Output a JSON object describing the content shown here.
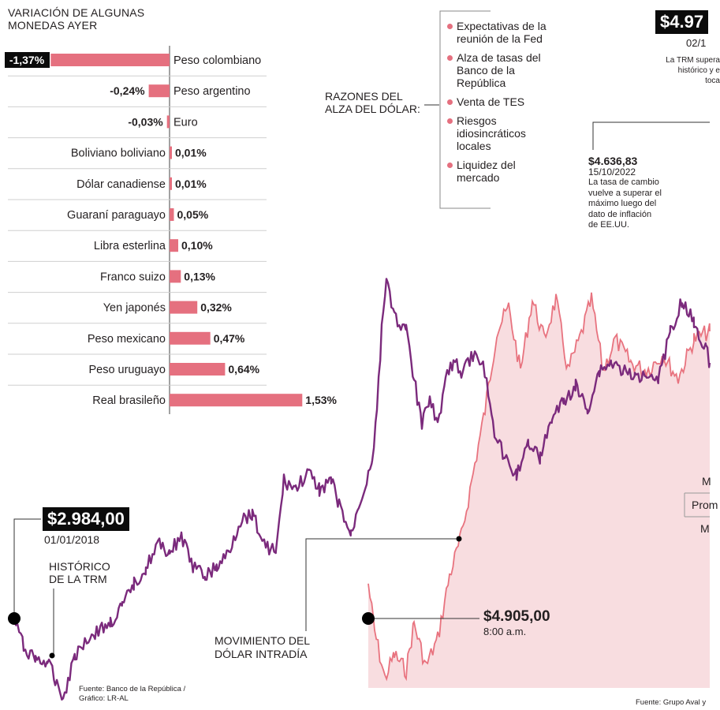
{
  "title": {
    "line1": "VARIACIÓN DE ALGUNAS",
    "line2": "MONEDAS AYER"
  },
  "colors": {
    "bar": "#e5707f",
    "purple": "#7b2a7c",
    "pink": "#e8737f",
    "area": "#f8dde0",
    "negBadge": "#0b0b0b"
  },
  "chart_data": [
    {
      "type": "bar",
      "orientation": "horizontal",
      "title": "VARIACIÓN DE ALGUNAS MONEDAS AYER",
      "categories": [
        "Peso colombiano",
        "Peso argentino",
        "Euro",
        "Boliviano boliviano",
        "Dólar canadiense",
        "Guaraní paraguayo",
        "Libra esterlina",
        "Franco suizo",
        "Yen japonés",
        "Peso mexicano",
        "Peso uruguayo",
        "Real brasileño"
      ],
      "values": [
        -1.37,
        -0.24,
        -0.03,
        0.01,
        0.01,
        0.05,
        0.1,
        0.13,
        0.32,
        0.47,
        0.64,
        1.53
      ],
      "labels": [
        "-1,37%",
        "-0,24%",
        "-0,03%",
        "0,01%",
        "0,01%",
        "0,05%",
        "0,10%",
        "0,13%",
        "0,32%",
        "0,47%",
        "0,64%",
        "1,53%"
      ],
      "unit": "%"
    },
    {
      "type": "line",
      "title": "HISTÓRICO DE LA TRM",
      "series_name": "HISTÓRICO DE LA TRM",
      "start": {
        "value": "$2.984,00",
        "date": "01/01/2018"
      },
      "annotations": [
        {
          "value": "$4.636,83",
          "date": "15/10/2022",
          "text": [
            "La tasa de cambio",
            "vuelve a superar el",
            "máximo luego del",
            "dato de inflación",
            "de EE.UU."
          ]
        },
        {
          "value": "$4.97",
          "date": "02/1",
          "text": [
            "La TRM supera",
            "histórico y e",
            "toca"
          ]
        }
      ],
      "x_range": [
        "2018",
        "2022"
      ],
      "y_range": [
        2900,
        5000
      ]
    },
    {
      "type": "area",
      "title": "MOVIMIENTO DEL DÓLAR INTRADÍA",
      "open": {
        "value": "$4.905,00",
        "time": "8:00 a.m."
      }
    }
  ],
  "reasons": {
    "title1": "RAZONES DEL",
    "title2": "ALZA DEL DÓLAR:",
    "items": [
      [
        "Expectativas de la",
        "reunión de la Fed"
      ],
      [
        "Alza de tasas del",
        "Banco de la",
        "República"
      ],
      [
        "Venta de TES"
      ],
      [
        "Riesgos",
        "idiosincráticos",
        "locales"
      ],
      [
        "Liquidez del",
        "mercado"
      ]
    ]
  },
  "labels": {
    "historico1": "HISTÓRICO",
    "historico2": "DE LA TRM",
    "intraday1": "MOVIMIENTO DEL",
    "intraday2": "DÓLAR INTRADÍA",
    "source1a": "Fuente: Banco de la República /",
    "source1b": "Gráfico: LR-AL",
    "source2": "Fuente: Grupo Aval y",
    "stat1": "M",
    "stat2": "Prom",
    "stat3": "M"
  }
}
